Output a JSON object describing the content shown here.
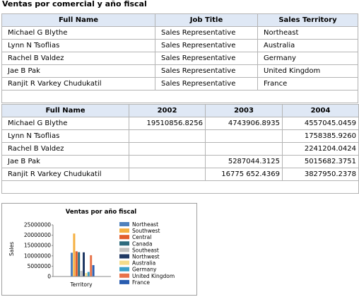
{
  "report": {
    "title": "Ventas por comercial y año fiscal"
  },
  "table1": {
    "headers": [
      "Full Name",
      "Job Title",
      "Sales Territory"
    ],
    "rows": [
      [
        "Michael G Blythe",
        "Sales Representative",
        "Northeast"
      ],
      [
        "Lynn N Tsoflias",
        "Sales Representative",
        "Australia"
      ],
      [
        "Rachel B Valdez",
        "Sales Representative",
        "Germany"
      ],
      [
        "Jae B Pak",
        "Sales Representative",
        "United Kingdom"
      ],
      [
        "Ranjit R Varkey Chudukatil",
        "Sales Representative",
        "France"
      ]
    ]
  },
  "table2": {
    "headers": [
      "Full Name",
      "2002",
      "2003",
      "2004"
    ],
    "rows": [
      [
        "Michael G Blythe",
        "19510856.8256",
        "4743906.8935",
        "4557045.0459"
      ],
      [
        "Lynn N Tsoflias",
        "",
        "",
        "1758385.9260"
      ],
      [
        "Rachel B Valdez",
        "",
        "",
        "2241204.0424"
      ],
      [
        "Jae B Pak",
        "",
        "5287044.3125",
        "5015682.3751"
      ],
      [
        "Ranjit R Varkey Chudukatil",
        "",
        "16775 652.4369",
        "3827950.2378"
      ]
    ]
  },
  "chart_data": {
    "type": "bar",
    "title": "Ventas por año fiscal",
    "xlabel": "Territory",
    "ylabel": "Sales",
    "ylim": [
      0,
      25000000
    ],
    "yticks": [
      "25000000",
      "20000000",
      "15000000",
      "10000000",
      "5000000",
      "0"
    ],
    "legend_position": "right",
    "series": [
      {
        "name": "Northeast",
        "color": "#4f81bd",
        "value": 11500000
      },
      {
        "name": "Southwest",
        "color": "#f5b041",
        "value": 20800000
      },
      {
        "name": "Central",
        "color": "#e25d2b",
        "value": 12200000
      },
      {
        "name": "Canada",
        "color": "#2e6b7e",
        "value": 11800000
      },
      {
        "name": "Southeast",
        "color": "#c0c0c0",
        "value": 2700000
      },
      {
        "name": "Northwest",
        "color": "#1f3864",
        "value": 11700000
      },
      {
        "name": "Australia",
        "color": "#f3dc8a",
        "value": 1700000
      },
      {
        "name": "Germany",
        "color": "#3aa0c8",
        "value": 2200000
      },
      {
        "name": "United Kingdom",
        "color": "#e8734a",
        "value": 10300000
      },
      {
        "name": "France",
        "color": "#2a5db0",
        "value": 5500000
      }
    ]
  }
}
